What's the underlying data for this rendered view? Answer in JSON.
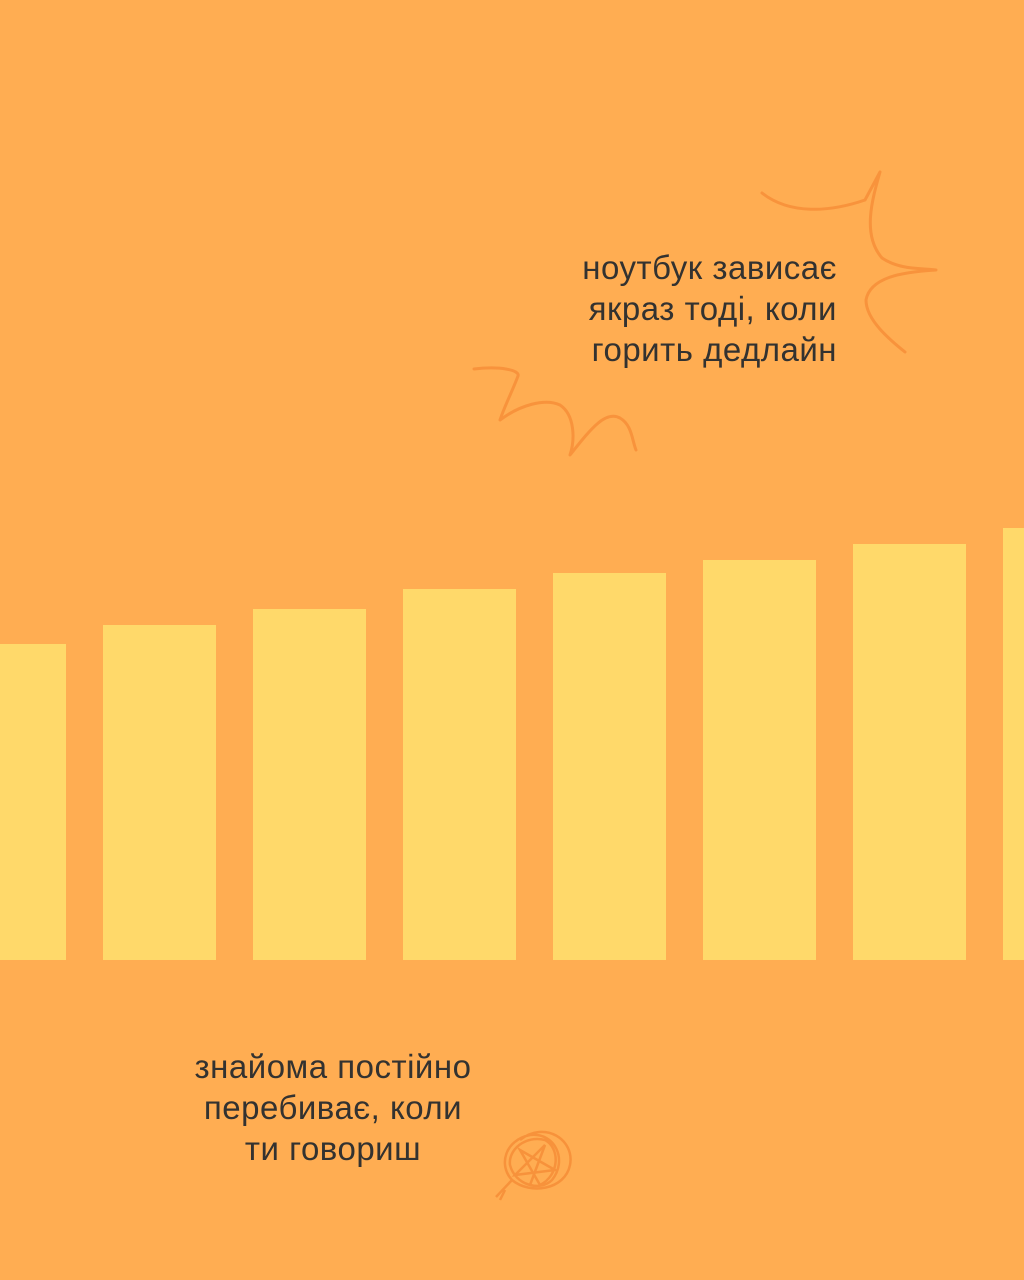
{
  "colors": {
    "background": "#FFAD52",
    "bars": "#FFD96A",
    "doodles": "#F7903A",
    "text": "#333230"
  },
  "caption_top": {
    "lines": [
      "ноутбук зависає",
      "якраз тоді, коли",
      "горить дедлайн"
    ]
  },
  "caption_bottom": {
    "lines": [
      "знайома постійно",
      "перебиває, коли",
      "ти говориш"
    ]
  },
  "decorations": {
    "top_icon": "burst-doodle-icon",
    "bottom_icon": "scribble-ball-icon"
  }
}
